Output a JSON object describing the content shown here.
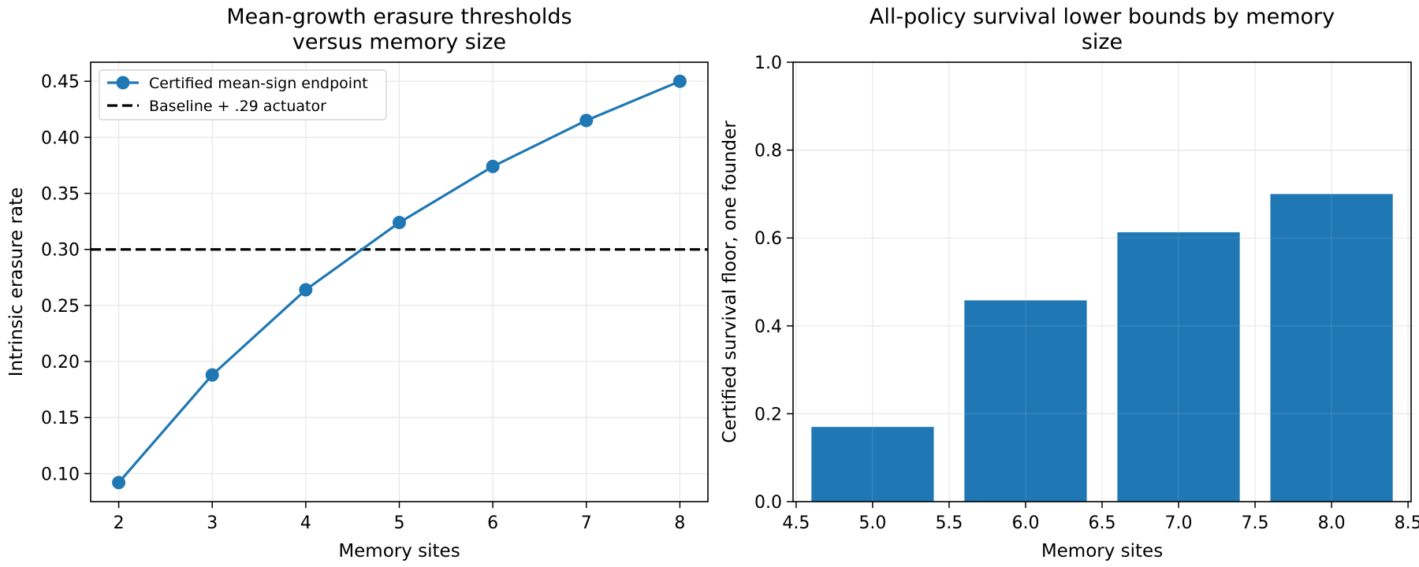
{
  "chart_data": [
    {
      "type": "line",
      "title": "Mean-growth erasure thresholds versus memory size",
      "xlabel": "Memory sites",
      "ylabel": "Intrinsic erasure rate",
      "x": [
        2,
        3,
        4,
        5,
        6,
        7,
        8
      ],
      "series": [
        {
          "name": "Certified mean-sign endpoint",
          "values": [
            0.092,
            0.188,
            0.264,
            0.324,
            0.374,
            0.415,
            0.45
          ],
          "color": "#1f77b4",
          "marker": "circle"
        }
      ],
      "reference_line": {
        "name": "Baseline + .29 actuator",
        "y": 0.3,
        "color": "#000000",
        "style": "dashed"
      },
      "xlim": [
        1.7,
        8.3
      ],
      "ylim": [
        0.075,
        0.467
      ],
      "xticks": [
        "2",
        "3",
        "4",
        "5",
        "6",
        "7",
        "8"
      ],
      "yticks": [
        "0.10",
        "0.15",
        "0.20",
        "0.25",
        "0.30",
        "0.35",
        "0.40",
        "0.45"
      ],
      "grid": true,
      "legend_position": "upper-left"
    },
    {
      "type": "bar",
      "title": "All-policy survival lower bounds by memory size",
      "xlabel": "Memory sites",
      "ylabel": "Certified survival floor, one founder",
      "categories": [
        5.0,
        6.0,
        7.0,
        8.0
      ],
      "values": [
        0.17,
        0.458,
        0.613,
        0.7
      ],
      "color": "#1f77b4",
      "xlim": [
        4.48,
        8.52
      ],
      "ylim": [
        0,
        1
      ],
      "xticks": [
        "4.5",
        "5.0",
        "5.5",
        "6.0",
        "6.5",
        "7.0",
        "7.5",
        "8.0",
        "8.5"
      ],
      "yticks": [
        "0.0",
        "0.2",
        "0.4",
        "0.6",
        "0.8",
        "1.0"
      ],
      "grid": true
    }
  ]
}
